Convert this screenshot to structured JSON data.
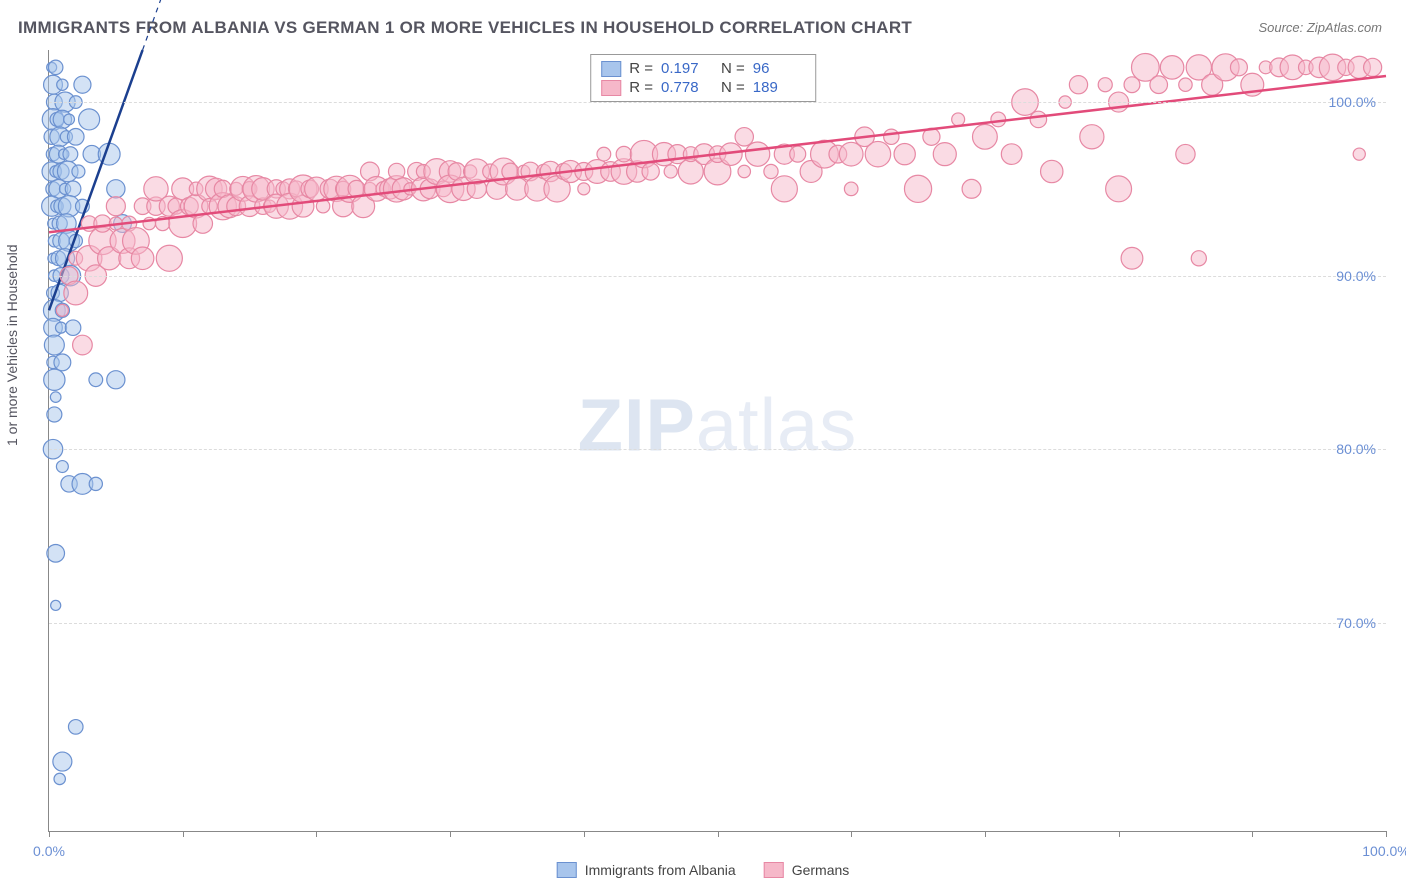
{
  "title": "IMMIGRANTS FROM ALBANIA VS GERMAN 1 OR MORE VEHICLES IN HOUSEHOLD CORRELATION CHART",
  "source": "Source: ZipAtlas.com",
  "watermark_a": "ZIP",
  "watermark_b": "atlas",
  "chart": {
    "type": "scatter",
    "ylabel": "1 or more Vehicles in Household",
    "xlim": [
      0,
      100
    ],
    "ylim": [
      58,
      103
    ],
    "x_ticks": [
      0,
      10,
      20,
      30,
      40,
      50,
      60,
      70,
      80,
      90,
      100
    ],
    "x_tick_labels": {
      "0": "0.0%",
      "100": "100.0%"
    },
    "y_ticks": [
      70,
      80,
      90,
      100
    ],
    "y_tick_labels": {
      "70": "70.0%",
      "80": "80.0%",
      "90": "90.0%",
      "100": "100.0%"
    },
    "background_color": "#ffffff",
    "grid_color": "#dcdcdc",
    "axis_color": "#888888",
    "tick_label_color": "#6b8fd4",
    "title_color": "#555560",
    "title_fontsize": 17,
    "label_fontsize": 14,
    "series": [
      {
        "name": "Immigrants from Albania",
        "legend_label": "Immigrants from Albania",
        "fill_color": "#a8c5ec",
        "stroke_color": "#6b91d0",
        "fill_opacity": 0.5,
        "marker_radius_min": 5,
        "marker_radius_max": 11,
        "R": "0.197",
        "N": "96",
        "trend": {
          "x1": 0,
          "y1": 88,
          "x2": 7,
          "y2": 103,
          "color": "#1b3f8f",
          "width": 2.5,
          "dash_extend": true
        },
        "points": [
          [
            0.2,
            102
          ],
          [
            0.5,
            102
          ],
          [
            0.3,
            101
          ],
          [
            1.0,
            101
          ],
          [
            0.4,
            100
          ],
          [
            1.2,
            100
          ],
          [
            2.0,
            100
          ],
          [
            2.5,
            101
          ],
          [
            0.3,
            99
          ],
          [
            0.6,
            99
          ],
          [
            1.0,
            99
          ],
          [
            1.5,
            99
          ],
          [
            0.2,
            98
          ],
          [
            0.8,
            98
          ],
          [
            1.3,
            98
          ],
          [
            2.0,
            98
          ],
          [
            3.0,
            99
          ],
          [
            0.3,
            97
          ],
          [
            0.7,
            97
          ],
          [
            1.1,
            97
          ],
          [
            1.6,
            97
          ],
          [
            0.2,
            96
          ],
          [
            0.5,
            96
          ],
          [
            0.9,
            96
          ],
          [
            1.4,
            96
          ],
          [
            2.2,
            96
          ],
          [
            3.2,
            97
          ],
          [
            4.5,
            97
          ],
          [
            0.3,
            95
          ],
          [
            0.7,
            95
          ],
          [
            1.2,
            95
          ],
          [
            1.8,
            95
          ],
          [
            0.2,
            94
          ],
          [
            0.6,
            94
          ],
          [
            1.0,
            94
          ],
          [
            1.5,
            94
          ],
          [
            2.5,
            94
          ],
          [
            5.0,
            95
          ],
          [
            0.3,
            93
          ],
          [
            0.8,
            93
          ],
          [
            1.3,
            93
          ],
          [
            0.4,
            92
          ],
          [
            0.9,
            92
          ],
          [
            1.5,
            92
          ],
          [
            2.0,
            92
          ],
          [
            5.5,
            93
          ],
          [
            0.3,
            91
          ],
          [
            0.7,
            91
          ],
          [
            1.2,
            91
          ],
          [
            0.4,
            90
          ],
          [
            0.9,
            90
          ],
          [
            1.6,
            90
          ],
          [
            0.3,
            89
          ],
          [
            0.8,
            89
          ],
          [
            0.4,
            88
          ],
          [
            1.0,
            88
          ],
          [
            0.3,
            87
          ],
          [
            0.9,
            87
          ],
          [
            1.8,
            87
          ],
          [
            0.4,
            86
          ],
          [
            0.3,
            85
          ],
          [
            1.0,
            85
          ],
          [
            0.4,
            84
          ],
          [
            3.5,
            84
          ],
          [
            5.0,
            84
          ],
          [
            0.5,
            83
          ],
          [
            0.4,
            82
          ],
          [
            0.3,
            80
          ],
          [
            1.0,
            79
          ],
          [
            1.5,
            78
          ],
          [
            2.5,
            78
          ],
          [
            3.5,
            78
          ],
          [
            0.5,
            74
          ],
          [
            0.5,
            71
          ],
          [
            2.0,
            64
          ],
          [
            1.0,
            62
          ],
          [
            0.8,
            61
          ]
        ]
      },
      {
        "name": "Germans",
        "legend_label": "Germans",
        "fill_color": "#f6b8c9",
        "stroke_color": "#e788a4",
        "fill_opacity": 0.5,
        "marker_radius_min": 6,
        "marker_radius_max": 14,
        "R": "0.778",
        "N": "189",
        "trend": {
          "x1": 0,
          "y1": 92.5,
          "x2": 100,
          "y2": 101.5,
          "color": "#e24b7a",
          "width": 2.5,
          "dash_extend": false
        },
        "points": [
          [
            1,
            88
          ],
          [
            1.5,
            90
          ],
          [
            2,
            89
          ],
          [
            2,
            91
          ],
          [
            2.5,
            86
          ],
          [
            3,
            91
          ],
          [
            3,
            93
          ],
          [
            3.5,
            90
          ],
          [
            4,
            92
          ],
          [
            4,
            93
          ],
          [
            4.5,
            91
          ],
          [
            5,
            93
          ],
          [
            5,
            94
          ],
          [
            5.5,
            92
          ],
          [
            6,
            93
          ],
          [
            6,
            91
          ],
          [
            6.5,
            92
          ],
          [
            7,
            94
          ],
          [
            7,
            91
          ],
          [
            7.5,
            93
          ],
          [
            8,
            94
          ],
          [
            8,
            95
          ],
          [
            8.5,
            93
          ],
          [
            9,
            94
          ],
          [
            9,
            91
          ],
          [
            9.5,
            94
          ],
          [
            10,
            95
          ],
          [
            10,
            93
          ],
          [
            10.5,
            94
          ],
          [
            11,
            94
          ],
          [
            11,
            95
          ],
          [
            11.5,
            93
          ],
          [
            12,
            95
          ],
          [
            12,
            94
          ],
          [
            12.5,
            95
          ],
          [
            13,
            94
          ],
          [
            13,
            95
          ],
          [
            13.5,
            94
          ],
          [
            14,
            95
          ],
          [
            14,
            94
          ],
          [
            14.5,
            95
          ],
          [
            15,
            95
          ],
          [
            15,
            94
          ],
          [
            15.5,
            95
          ],
          [
            16,
            94
          ],
          [
            16,
            95
          ],
          [
            16.5,
            94
          ],
          [
            17,
            95
          ],
          [
            17,
            94
          ],
          [
            17.5,
            95
          ],
          [
            18,
            95
          ],
          [
            18,
            94
          ],
          [
            18.5,
            95
          ],
          [
            19,
            94
          ],
          [
            19,
            95
          ],
          [
            19.5,
            95
          ],
          [
            20,
            95
          ],
          [
            20.5,
            94
          ],
          [
            21,
            95
          ],
          [
            21.5,
            95
          ],
          [
            22,
            95
          ],
          [
            22,
            94
          ],
          [
            22.5,
            95
          ],
          [
            23,
            95
          ],
          [
            23.5,
            94
          ],
          [
            24,
            95
          ],
          [
            24,
            96
          ],
          [
            24.5,
            95
          ],
          [
            25,
            95
          ],
          [
            25.5,
            95
          ],
          [
            26,
            95
          ],
          [
            26,
            96
          ],
          [
            26.5,
            95
          ],
          [
            27,
            95
          ],
          [
            27.5,
            96
          ],
          [
            28,
            95
          ],
          [
            28,
            96
          ],
          [
            28.5,
            95
          ],
          [
            29,
            96
          ],
          [
            29.5,
            95
          ],
          [
            30,
            96
          ],
          [
            30,
            95
          ],
          [
            30.5,
            96
          ],
          [
            31,
            95
          ],
          [
            31.5,
            96
          ],
          [
            32,
            95
          ],
          [
            32,
            96
          ],
          [
            33,
            96
          ],
          [
            33.5,
            95
          ],
          [
            34,
            96
          ],
          [
            34.5,
            96
          ],
          [
            35,
            95
          ],
          [
            35.5,
            96
          ],
          [
            36,
            96
          ],
          [
            36.5,
            95
          ],
          [
            37,
            96
          ],
          [
            37.5,
            96
          ],
          [
            38,
            95
          ],
          [
            38.5,
            96
          ],
          [
            39,
            96
          ],
          [
            40,
            95
          ],
          [
            40,
            96
          ],
          [
            41,
            96
          ],
          [
            41.5,
            97
          ],
          [
            42,
            96
          ],
          [
            43,
            96
          ],
          [
            43,
            97
          ],
          [
            44,
            96
          ],
          [
            44.5,
            97
          ],
          [
            45,
            96
          ],
          [
            46,
            97
          ],
          [
            46.5,
            96
          ],
          [
            47,
            97
          ],
          [
            48,
            96
          ],
          [
            48,
            97
          ],
          [
            49,
            97
          ],
          [
            50,
            96
          ],
          [
            50,
            97
          ],
          [
            51,
            97
          ],
          [
            52,
            96
          ],
          [
            52,
            98
          ],
          [
            53,
            97
          ],
          [
            54,
            96
          ],
          [
            55,
            97
          ],
          [
            55,
            95
          ],
          [
            56,
            97
          ],
          [
            57,
            96
          ],
          [
            58,
            97
          ],
          [
            59,
            97
          ],
          [
            60,
            97
          ],
          [
            60,
            95
          ],
          [
            61,
            98
          ],
          [
            62,
            97
          ],
          [
            63,
            98
          ],
          [
            64,
            97
          ],
          [
            65,
            95
          ],
          [
            66,
            98
          ],
          [
            67,
            97
          ],
          [
            68,
            99
          ],
          [
            69,
            95
          ],
          [
            70,
            98
          ],
          [
            71,
            99
          ],
          [
            72,
            97
          ],
          [
            73,
            100
          ],
          [
            74,
            99
          ],
          [
            75,
            96
          ],
          [
            76,
            100
          ],
          [
            77,
            101
          ],
          [
            78,
            98
          ],
          [
            79,
            101
          ],
          [
            80,
            100
          ],
          [
            80,
            95
          ],
          [
            81,
            101
          ],
          [
            81,
            91
          ],
          [
            82,
            102
          ],
          [
            83,
            101
          ],
          [
            84,
            102
          ],
          [
            85,
            101
          ],
          [
            85,
            97
          ],
          [
            86,
            102
          ],
          [
            86,
            91
          ],
          [
            87,
            101
          ],
          [
            88,
            102
          ],
          [
            89,
            102
          ],
          [
            90,
            101
          ],
          [
            91,
            102
          ],
          [
            92,
            102
          ],
          [
            93,
            102
          ],
          [
            94,
            102
          ],
          [
            95,
            102
          ],
          [
            96,
            102
          ],
          [
            97,
            102
          ],
          [
            98,
            102
          ],
          [
            98,
            97
          ],
          [
            99,
            102
          ]
        ]
      }
    ]
  },
  "stats_legend": {
    "rows": [
      {
        "swatch_fill": "#a8c5ec",
        "swatch_stroke": "#6b91d0",
        "r_label": "R =",
        "r_val": "0.197",
        "n_label": "N =",
        "n_val": "96"
      },
      {
        "swatch_fill": "#f6b8c9",
        "swatch_stroke": "#e788a4",
        "r_label": "R =",
        "r_val": "0.778",
        "n_label": "N =",
        "n_val": "189"
      }
    ]
  },
  "bottom_legend": {
    "items": [
      {
        "swatch_fill": "#a8c5ec",
        "swatch_stroke": "#6b91d0",
        "label": "Immigrants from Albania"
      },
      {
        "swatch_fill": "#f6b8c9",
        "swatch_stroke": "#e788a4",
        "label": "Germans"
      }
    ]
  }
}
